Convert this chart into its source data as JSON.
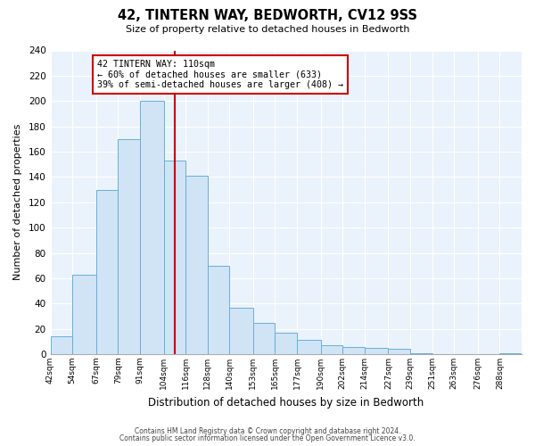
{
  "title": "42, TINTERN WAY, BEDWORTH, CV12 9SS",
  "subtitle": "Size of property relative to detached houses in Bedworth",
  "xlabel": "Distribution of detached houses by size in Bedworth",
  "ylabel": "Number of detached properties",
  "bar_labels": [
    "42sqm",
    "54sqm",
    "67sqm",
    "79sqm",
    "91sqm",
    "104sqm",
    "116sqm",
    "128sqm",
    "140sqm",
    "153sqm",
    "165sqm",
    "177sqm",
    "190sqm",
    "202sqm",
    "214sqm",
    "227sqm",
    "239sqm",
    "251sqm",
    "263sqm",
    "276sqm",
    "288sqm"
  ],
  "bar_heights": [
    14,
    63,
    130,
    170,
    200,
    153,
    141,
    70,
    37,
    25,
    17,
    11,
    7,
    6,
    5,
    4,
    1,
    0,
    0,
    0,
    1
  ],
  "bar_left_edges": [
    42,
    54,
    67,
    79,
    91,
    104,
    116,
    128,
    140,
    153,
    165,
    177,
    190,
    202,
    214,
    227,
    239,
    251,
    263,
    276,
    288
  ],
  "bar_widths": [
    12,
    13,
    12,
    12,
    13,
    12,
    12,
    12,
    13,
    12,
    12,
    13,
    12,
    12,
    13,
    12,
    12,
    12,
    13,
    12,
    12
  ],
  "bar_color": "#d0e4f5",
  "bar_edgecolor": "#6aaed6",
  "vline_x": 110,
  "vline_color": "#cc0000",
  "annotation_text_line1": "42 TINTERN WAY: 110sqm",
  "annotation_text_line2": "← 60% of detached houses are smaller (633)",
  "annotation_text_line3": "39% of semi-detached houses are larger (408) →",
  "ylim": [
    0,
    240
  ],
  "yticks": [
    0,
    20,
    40,
    60,
    80,
    100,
    120,
    140,
    160,
    180,
    200,
    220,
    240
  ],
  "footer1": "Contains HM Land Registry data © Crown copyright and database right 2024.",
  "footer2": "Contains public sector information licensed under the Open Government Licence v3.0.",
  "background_color": "#ffffff",
  "plot_bg_color": "#eaf2fb",
  "grid_color": "#ffffff"
}
